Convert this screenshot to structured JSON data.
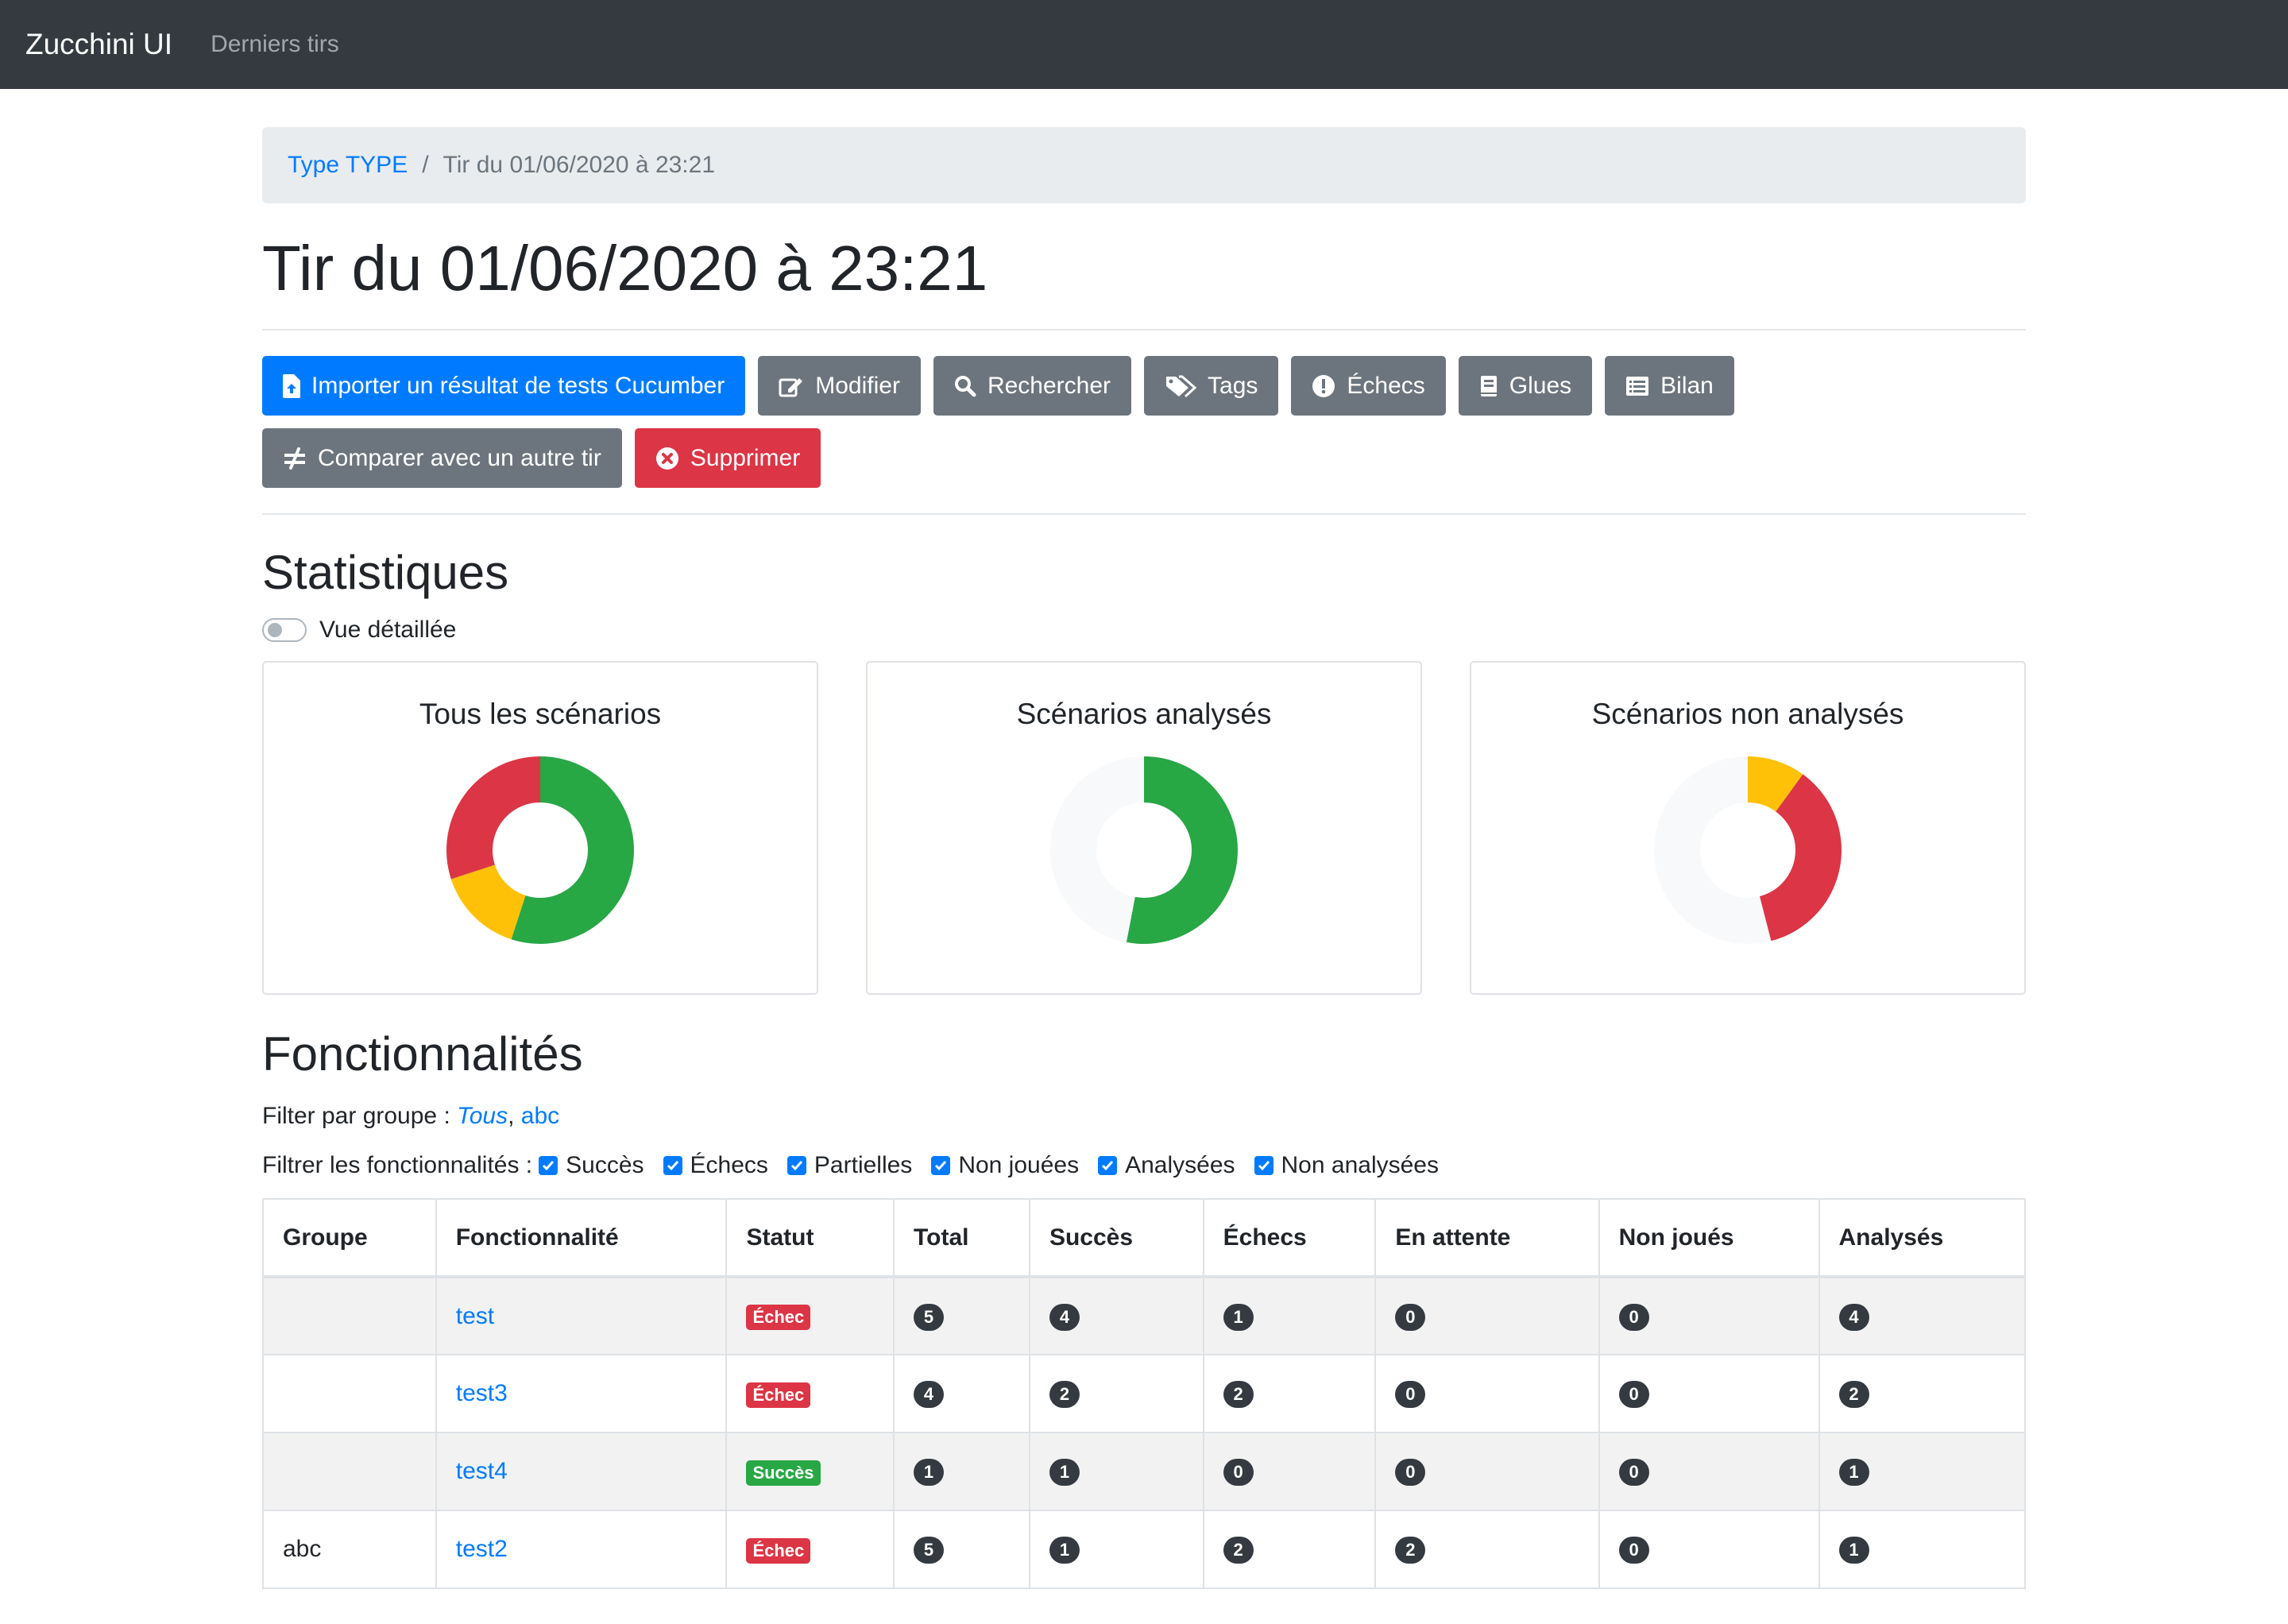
{
  "navbar": {
    "brand": "Zucchini UI",
    "link": "Derniers tirs"
  },
  "breadcrumb": {
    "parent": "Type TYPE",
    "current": "Tir du 01/06/2020 à 23:21"
  },
  "page_title": "Tir du 01/06/2020 à 23:21",
  "buttons": {
    "import": "Importer un résultat de tests Cucumber",
    "edit": "Modifier",
    "search": "Rechercher",
    "tags": "Tags",
    "failures": "Échecs",
    "glues": "Glues",
    "report": "Bilan",
    "compare": "Comparer avec un autre tir",
    "delete": "Supprimer"
  },
  "stats": {
    "title": "Statistiques",
    "toggle_label": "Vue détaillée",
    "cards": [
      "Tous les scénarios",
      "Scénarios analysés",
      "Scénarios non analysés"
    ]
  },
  "chart_data": [
    {
      "type": "pie",
      "title": "Tous les scénarios",
      "donut": true,
      "slices": [
        {
          "value": 0.55,
          "color": "#28a745"
        },
        {
          "value": 0.15,
          "color": "#ffc107"
        },
        {
          "value": 0.3,
          "color": "#dc3545"
        }
      ]
    },
    {
      "type": "pie",
      "title": "Scénarios analysés",
      "donut": true,
      "slices": [
        {
          "value": 0.53,
          "color": "#28a745"
        },
        {
          "value": 0.47,
          "color": "#f8f9fa"
        }
      ]
    },
    {
      "type": "pie",
      "title": "Scénarios non analysés",
      "donut": true,
      "slices": [
        {
          "value": 0.1,
          "color": "#ffc107"
        },
        {
          "value": 0.36,
          "color": "#dc3545"
        },
        {
          "value": 0.54,
          "color": "#f8f9fa"
        }
      ]
    }
  ],
  "features": {
    "title": "Fonctionnalités",
    "group_filter_label": "Filter par groupe :",
    "group_filter_all": "Tous",
    "group_filter_sep": ",",
    "group_filter_abc": "abc",
    "feature_filter_label": "Filtrer les fonctionnalités :",
    "feature_filters": [
      "Succès",
      "Échecs",
      "Partielles",
      "Non jouées",
      "Analysées",
      "Non analysées"
    ],
    "columns": [
      "Groupe",
      "Fonctionnalité",
      "Statut",
      "Total",
      "Succès",
      "Échecs",
      "En attente",
      "Non joués",
      "Analysés"
    ],
    "rows": [
      {
        "group": "",
        "name": "test",
        "status": "Échec",
        "status_type": "danger",
        "total": "5",
        "success": "4",
        "failures": "1",
        "pending": "0",
        "not_run": "0",
        "analysed": "4"
      },
      {
        "group": "",
        "name": "test3",
        "status": "Échec",
        "status_type": "danger",
        "total": "4",
        "success": "2",
        "failures": "2",
        "pending": "0",
        "not_run": "0",
        "analysed": "2"
      },
      {
        "group": "",
        "name": "test4",
        "status": "Succès",
        "status_type": "success",
        "total": "1",
        "success": "1",
        "failures": "0",
        "pending": "0",
        "not_run": "0",
        "analysed": "1"
      },
      {
        "group": "abc",
        "name": "test2",
        "status": "Échec",
        "status_type": "danger",
        "total": "5",
        "success": "1",
        "failures": "2",
        "pending": "2",
        "not_run": "0",
        "analysed": "1"
      }
    ]
  },
  "colors": {
    "primary": "#007bff",
    "secondary": "#6c757d",
    "danger": "#dc3545",
    "success": "#28a745",
    "warning": "#ffc107",
    "navbar": "#343a40"
  }
}
